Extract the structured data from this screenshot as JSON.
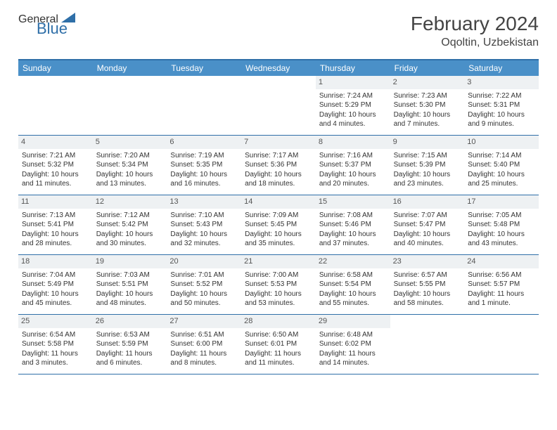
{
  "logo": {
    "text_general": "General",
    "text_blue": "Blue",
    "general_color": "#6b6b6b",
    "blue_color": "#2f6fa8",
    "triangle_color": "#2f6fa8"
  },
  "header": {
    "month_title": "February 2024",
    "location": "Oqoltin, Uzbekistan",
    "title_color": "#444444"
  },
  "calendar": {
    "header_bg": "#4a90c8",
    "header_text_color": "#ffffff",
    "border_color": "#2f6fa8",
    "daynum_bg": "#eef1f3",
    "cell_text_color": "#333333",
    "background_color": "#ffffff",
    "columns": [
      "Sunday",
      "Monday",
      "Tuesday",
      "Wednesday",
      "Thursday",
      "Friday",
      "Saturday"
    ],
    "weeks": [
      [
        null,
        null,
        null,
        null,
        {
          "day": "1",
          "sunrise": "Sunrise: 7:24 AM",
          "sunset": "Sunset: 5:29 PM",
          "daylight1": "Daylight: 10 hours",
          "daylight2": "and 4 minutes."
        },
        {
          "day": "2",
          "sunrise": "Sunrise: 7:23 AM",
          "sunset": "Sunset: 5:30 PM",
          "daylight1": "Daylight: 10 hours",
          "daylight2": "and 7 minutes."
        },
        {
          "day": "3",
          "sunrise": "Sunrise: 7:22 AM",
          "sunset": "Sunset: 5:31 PM",
          "daylight1": "Daylight: 10 hours",
          "daylight2": "and 9 minutes."
        }
      ],
      [
        {
          "day": "4",
          "sunrise": "Sunrise: 7:21 AM",
          "sunset": "Sunset: 5:32 PM",
          "daylight1": "Daylight: 10 hours",
          "daylight2": "and 11 minutes."
        },
        {
          "day": "5",
          "sunrise": "Sunrise: 7:20 AM",
          "sunset": "Sunset: 5:34 PM",
          "daylight1": "Daylight: 10 hours",
          "daylight2": "and 13 minutes."
        },
        {
          "day": "6",
          "sunrise": "Sunrise: 7:19 AM",
          "sunset": "Sunset: 5:35 PM",
          "daylight1": "Daylight: 10 hours",
          "daylight2": "and 16 minutes."
        },
        {
          "day": "7",
          "sunrise": "Sunrise: 7:17 AM",
          "sunset": "Sunset: 5:36 PM",
          "daylight1": "Daylight: 10 hours",
          "daylight2": "and 18 minutes."
        },
        {
          "day": "8",
          "sunrise": "Sunrise: 7:16 AM",
          "sunset": "Sunset: 5:37 PM",
          "daylight1": "Daylight: 10 hours",
          "daylight2": "and 20 minutes."
        },
        {
          "day": "9",
          "sunrise": "Sunrise: 7:15 AM",
          "sunset": "Sunset: 5:39 PM",
          "daylight1": "Daylight: 10 hours",
          "daylight2": "and 23 minutes."
        },
        {
          "day": "10",
          "sunrise": "Sunrise: 7:14 AM",
          "sunset": "Sunset: 5:40 PM",
          "daylight1": "Daylight: 10 hours",
          "daylight2": "and 25 minutes."
        }
      ],
      [
        {
          "day": "11",
          "sunrise": "Sunrise: 7:13 AM",
          "sunset": "Sunset: 5:41 PM",
          "daylight1": "Daylight: 10 hours",
          "daylight2": "and 28 minutes."
        },
        {
          "day": "12",
          "sunrise": "Sunrise: 7:12 AM",
          "sunset": "Sunset: 5:42 PM",
          "daylight1": "Daylight: 10 hours",
          "daylight2": "and 30 minutes."
        },
        {
          "day": "13",
          "sunrise": "Sunrise: 7:10 AM",
          "sunset": "Sunset: 5:43 PM",
          "daylight1": "Daylight: 10 hours",
          "daylight2": "and 32 minutes."
        },
        {
          "day": "14",
          "sunrise": "Sunrise: 7:09 AM",
          "sunset": "Sunset: 5:45 PM",
          "daylight1": "Daylight: 10 hours",
          "daylight2": "and 35 minutes."
        },
        {
          "day": "15",
          "sunrise": "Sunrise: 7:08 AM",
          "sunset": "Sunset: 5:46 PM",
          "daylight1": "Daylight: 10 hours",
          "daylight2": "and 37 minutes."
        },
        {
          "day": "16",
          "sunrise": "Sunrise: 7:07 AM",
          "sunset": "Sunset: 5:47 PM",
          "daylight1": "Daylight: 10 hours",
          "daylight2": "and 40 minutes."
        },
        {
          "day": "17",
          "sunrise": "Sunrise: 7:05 AM",
          "sunset": "Sunset: 5:48 PM",
          "daylight1": "Daylight: 10 hours",
          "daylight2": "and 43 minutes."
        }
      ],
      [
        {
          "day": "18",
          "sunrise": "Sunrise: 7:04 AM",
          "sunset": "Sunset: 5:49 PM",
          "daylight1": "Daylight: 10 hours",
          "daylight2": "and 45 minutes."
        },
        {
          "day": "19",
          "sunrise": "Sunrise: 7:03 AM",
          "sunset": "Sunset: 5:51 PM",
          "daylight1": "Daylight: 10 hours",
          "daylight2": "and 48 minutes."
        },
        {
          "day": "20",
          "sunrise": "Sunrise: 7:01 AM",
          "sunset": "Sunset: 5:52 PM",
          "daylight1": "Daylight: 10 hours",
          "daylight2": "and 50 minutes."
        },
        {
          "day": "21",
          "sunrise": "Sunrise: 7:00 AM",
          "sunset": "Sunset: 5:53 PM",
          "daylight1": "Daylight: 10 hours",
          "daylight2": "and 53 minutes."
        },
        {
          "day": "22",
          "sunrise": "Sunrise: 6:58 AM",
          "sunset": "Sunset: 5:54 PM",
          "daylight1": "Daylight: 10 hours",
          "daylight2": "and 55 minutes."
        },
        {
          "day": "23",
          "sunrise": "Sunrise: 6:57 AM",
          "sunset": "Sunset: 5:55 PM",
          "daylight1": "Daylight: 10 hours",
          "daylight2": "and 58 minutes."
        },
        {
          "day": "24",
          "sunrise": "Sunrise: 6:56 AM",
          "sunset": "Sunset: 5:57 PM",
          "daylight1": "Daylight: 11 hours",
          "daylight2": "and 1 minute."
        }
      ],
      [
        {
          "day": "25",
          "sunrise": "Sunrise: 6:54 AM",
          "sunset": "Sunset: 5:58 PM",
          "daylight1": "Daylight: 11 hours",
          "daylight2": "and 3 minutes."
        },
        {
          "day": "26",
          "sunrise": "Sunrise: 6:53 AM",
          "sunset": "Sunset: 5:59 PM",
          "daylight1": "Daylight: 11 hours",
          "daylight2": "and 6 minutes."
        },
        {
          "day": "27",
          "sunrise": "Sunrise: 6:51 AM",
          "sunset": "Sunset: 6:00 PM",
          "daylight1": "Daylight: 11 hours",
          "daylight2": "and 8 minutes."
        },
        {
          "day": "28",
          "sunrise": "Sunrise: 6:50 AM",
          "sunset": "Sunset: 6:01 PM",
          "daylight1": "Daylight: 11 hours",
          "daylight2": "and 11 minutes."
        },
        {
          "day": "29",
          "sunrise": "Sunrise: 6:48 AM",
          "sunset": "Sunset: 6:02 PM",
          "daylight1": "Daylight: 11 hours",
          "daylight2": "and 14 minutes."
        },
        null,
        null
      ]
    ]
  }
}
